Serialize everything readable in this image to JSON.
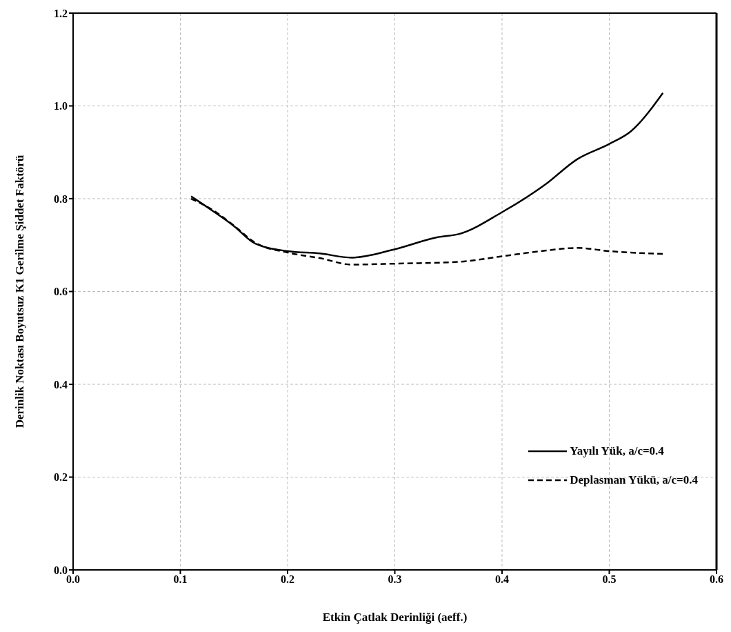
{
  "chart_data": {
    "type": "line",
    "xlabel": "Etkin Çatlak Derinliği (aeff.)",
    "ylabel": "Derinlik Noktası Boyutsuz K1 Gerilme Şiddet Faktörü",
    "xlim": [
      0,
      0.6
    ],
    "xticks": [
      {
        "value": 0,
        "label": "0.0"
      },
      {
        "value": 0.1,
        "label": "0.1"
      },
      {
        "value": 0.2,
        "label": "0.2"
      },
      {
        "value": 0.3,
        "label": "0.3"
      },
      {
        "value": 0.4,
        "label": "0.4"
      },
      {
        "value": 0.5,
        "label": "0.5"
      },
      {
        "value": 0.6,
        "label": "0.6"
      }
    ],
    "ylim": [
      0,
      1.2
    ],
    "yticks": [
      {
        "value": 0,
        "label": "0.0"
      },
      {
        "value": 0.2,
        "label": "0.2"
      },
      {
        "value": 0.4,
        "label": "0.4"
      },
      {
        "value": 0.6,
        "label": "0.6"
      },
      {
        "value": 0.8,
        "label": "0.8"
      },
      {
        "value": 1,
        "label": "1.0"
      },
      {
        "value": 1.2,
        "label": "1.2"
      }
    ],
    "grid": true,
    "legend": "bottom right",
    "marker": "none",
    "series": [
      {
        "name": "Yayılı Yük, a/c=0.4",
        "color": "#000000",
        "line_style": "solid",
        "x": [
          0.11,
          0.13,
          0.15,
          0.17,
          0.2,
          0.23,
          0.26,
          0.3,
          0.34,
          0.36,
          0.4,
          0.44,
          0.47,
          0.5,
          0.52,
          0.55
        ],
        "values": [
          0.805,
          0.774,
          0.741,
          0.703,
          0.687,
          0.682,
          0.673,
          0.691,
          0.717,
          0.724,
          0.771,
          0.83,
          0.885,
          0.918,
          0.945,
          1.028
        ]
      },
      {
        "name": "Deplasman Yükü, a/c=0.4",
        "color": "#000000",
        "line_style": "dashed",
        "x": [
          0.11,
          0.13,
          0.15,
          0.17,
          0.2,
          0.23,
          0.26,
          0.3,
          0.36,
          0.4,
          0.44,
          0.47,
          0.5,
          0.55
        ],
        "values": [
          0.8,
          0.776,
          0.742,
          0.705,
          0.684,
          0.672,
          0.658,
          0.66,
          0.664,
          0.676,
          0.688,
          0.694,
          0.687,
          0.681
        ]
      }
    ]
  }
}
